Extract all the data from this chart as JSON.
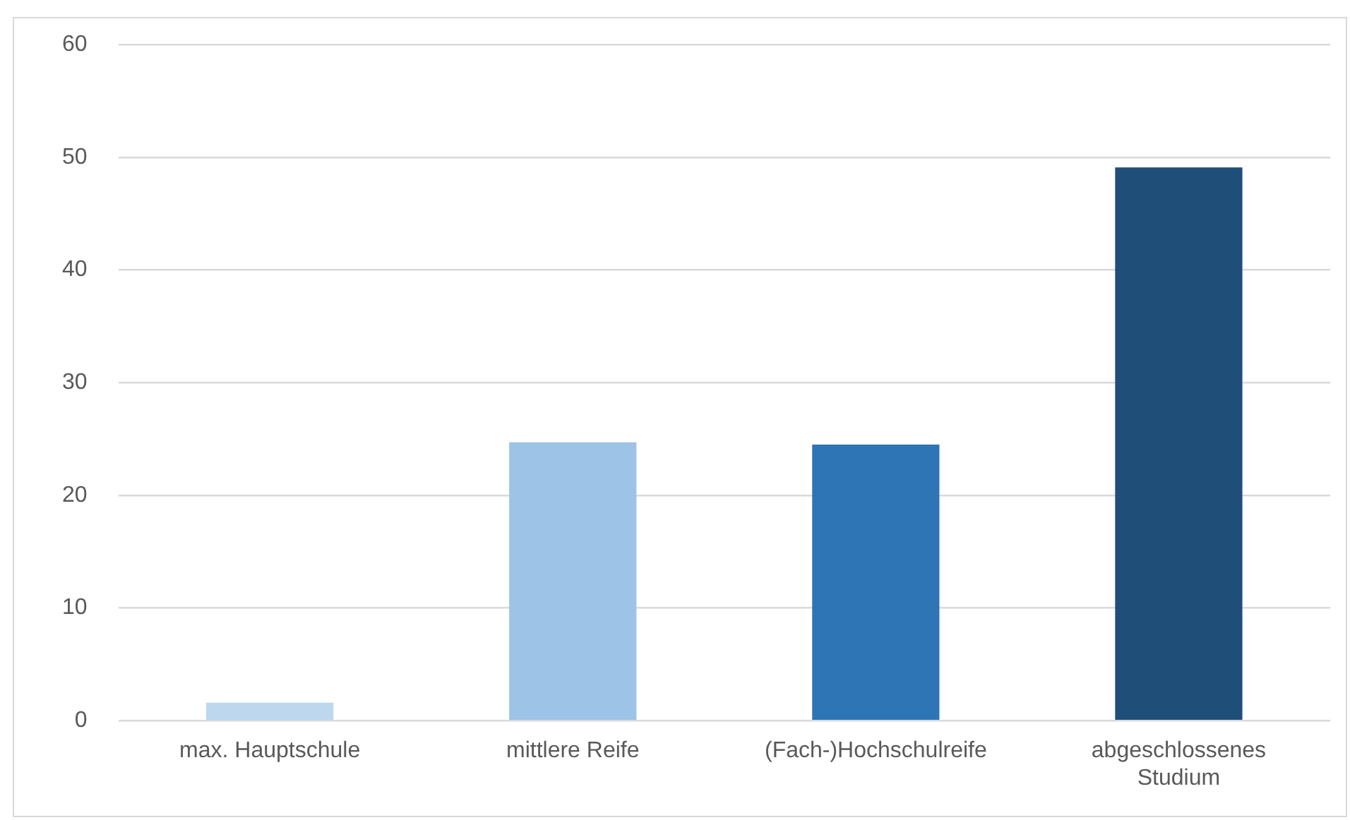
{
  "chart_data": {
    "type": "bar",
    "categories": [
      "max. Hauptschule",
      "mittlere Reife",
      "(Fach-)Hochschulreife",
      "abgeschlossenes Studium"
    ],
    "values": [
      1.6,
      24.7,
      24.5,
      49.1
    ],
    "colors": [
      "#bdd7ee",
      "#9dc3e6",
      "#2e75b6",
      "#1f4e79"
    ],
    "ylim": [
      0,
      60
    ],
    "yticks": [
      0,
      10,
      20,
      30,
      40,
      50,
      60
    ],
    "grid": "y",
    "legend": false
  }
}
